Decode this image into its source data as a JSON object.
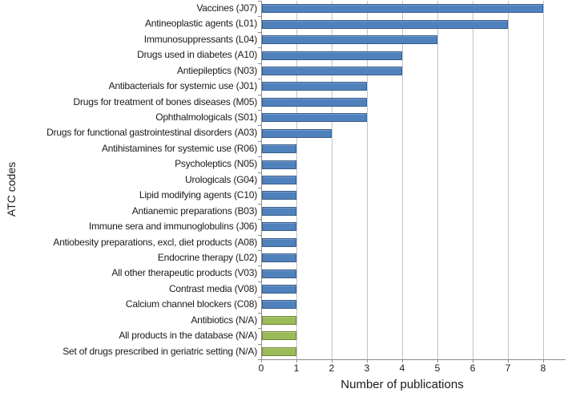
{
  "chart_data": {
    "type": "bar",
    "orientation": "horizontal",
    "title": "",
    "xlabel": "Number of publications",
    "ylabel": "ATC codes",
    "xlim": [
      0,
      8.64
    ],
    "xticks": [
      0,
      1,
      2,
      3,
      4,
      5,
      6,
      7,
      8
    ],
    "grid": true,
    "legend_position": "none",
    "categories": [
      "Vaccines (J07)",
      "Antineoplastic agents (L01)",
      "Immunosuppressants (L04)",
      "Drugs used in diabetes (A10)",
      "Antiepileptics (N03)",
      "Antibacterials for systemic use (J01)",
      "Drugs for treatment of bones diseases (M05)",
      "Ophthalmologicals (S01)",
      "Drugs for functional gastrointestinal disorders (A03)",
      "Antihistamines for systemic use (R06)",
      "Psycholeptics (N05)",
      "Urologicals (G04)",
      "Lipid modifying agents (C10)",
      "Antianemic preparations (B03)",
      "Immune sera and immunoglobulins (J06)",
      "Antiobesity preparations, excl, diet products (A08)",
      "Endocrine therapy (L02)",
      "All other therapeutic products (V03)",
      "Contrast media (V08)",
      "Calcium channel blockers (C08)",
      "Antibiotics (N/A)",
      "All products in the database (N/A)",
      "Set of drugs prescribed in geriatric setting (N/A)"
    ],
    "values": [
      8,
      7,
      5,
      4,
      4,
      3,
      3,
      3,
      2,
      1,
      1,
      1,
      1,
      1,
      1,
      1,
      1,
      1,
      1,
      1,
      1,
      1,
      1
    ],
    "bar_colors": [
      "#4f81bd",
      "#4f81bd",
      "#4f81bd",
      "#4f81bd",
      "#4f81bd",
      "#4f81bd",
      "#4f81bd",
      "#4f81bd",
      "#4f81bd",
      "#4f81bd",
      "#4f81bd",
      "#4f81bd",
      "#4f81bd",
      "#4f81bd",
      "#4f81bd",
      "#4f81bd",
      "#4f81bd",
      "#4f81bd",
      "#4f81bd",
      "#4f81bd",
      "#9bbb59",
      "#9bbb59",
      "#9bbb59"
    ],
    "colors": {
      "blue_bar": "#4f81bd",
      "green_bar": "#9bbb59",
      "gridline": "#c3c3c3",
      "axis": "#8c8c8c"
    }
  }
}
